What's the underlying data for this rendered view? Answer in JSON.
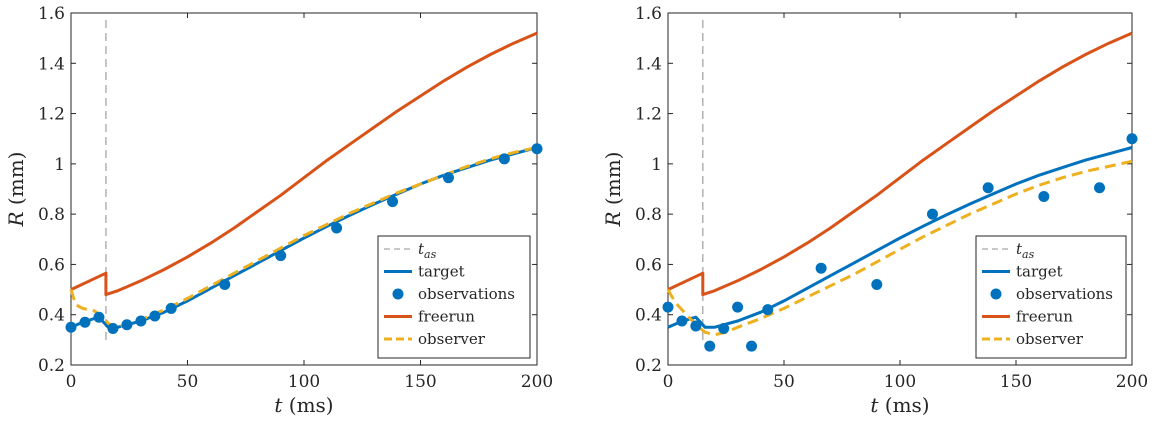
{
  "chart_data": [
    {
      "type": "line",
      "xlabel": {
        "var": "t",
        "unit": "(ms)"
      },
      "ylabel": {
        "var": "R",
        "unit": "(mm)"
      },
      "xlim": [
        0,
        200
      ],
      "ylim": [
        0.2,
        1.6
      ],
      "xticks": [
        "0",
        "50",
        "100",
        "150",
        "200"
      ],
      "yticks": [
        "0.2",
        "0.4",
        "0.6",
        "0.8",
        "1",
        "1.2",
        "1.4",
        "1.6"
      ],
      "grid": false,
      "legend_position": "bottom-right",
      "legend": [
        {
          "label": "t",
          "sub": "as"
        },
        {
          "label": "target"
        },
        {
          "label": "observations"
        },
        {
          "label": "freerun"
        },
        {
          "label": "observer"
        }
      ],
      "t_as": 15,
      "series": [
        {
          "name": "target",
          "color": "#0072BD",
          "style": "solid",
          "x": [
            0,
            5,
            10,
            12,
            14,
            16,
            20,
            30,
            40,
            50,
            60,
            70,
            80,
            90,
            100,
            110,
            120,
            130,
            140,
            150,
            160,
            170,
            180,
            190,
            200
          ],
          "y": [
            0.35,
            0.37,
            0.385,
            0.39,
            0.37,
            0.35,
            0.35,
            0.375,
            0.41,
            0.455,
            0.505,
            0.555,
            0.605,
            0.655,
            0.705,
            0.752,
            0.797,
            0.84,
            0.88,
            0.92,
            0.955,
            0.985,
            1.015,
            1.04,
            1.065
          ]
        },
        {
          "name": "observations",
          "color": "#0072BD",
          "style": "markers",
          "x": [
            0,
            6,
            12,
            18,
            24,
            30,
            36,
            43,
            66,
            90,
            114,
            138,
            162,
            186,
            200
          ],
          "y": [
            0.35,
            0.37,
            0.39,
            0.345,
            0.36,
            0.375,
            0.395,
            0.425,
            0.52,
            0.635,
            0.745,
            0.85,
            0.945,
            1.02,
            1.06
          ]
        },
        {
          "name": "freerun",
          "color": "#D95319",
          "style": "solid",
          "x": [
            0,
            15,
            15,
            20,
            30,
            40,
            50,
            60,
            70,
            80,
            90,
            100,
            110,
            120,
            130,
            140,
            150,
            160,
            170,
            180,
            190,
            200
          ],
          "y": [
            0.5,
            0.565,
            0.48,
            0.495,
            0.535,
            0.58,
            0.63,
            0.685,
            0.745,
            0.81,
            0.875,
            0.945,
            1.015,
            1.08,
            1.145,
            1.21,
            1.27,
            1.33,
            1.385,
            1.435,
            1.48,
            1.52
          ]
        },
        {
          "name": "observer",
          "color": "#EDB120",
          "style": "dashed",
          "x": [
            0,
            2,
            5,
            10,
            14,
            16,
            20,
            30,
            40,
            50,
            60,
            70,
            80,
            90,
            100,
            110,
            120,
            130,
            140,
            150,
            160,
            170,
            180,
            190,
            200
          ],
          "y": [
            0.5,
            0.44,
            0.425,
            0.415,
            0.39,
            0.365,
            0.35,
            0.38,
            0.42,
            0.465,
            0.515,
            0.565,
            0.615,
            0.665,
            0.715,
            0.76,
            0.805,
            0.845,
            0.885,
            0.92,
            0.955,
            0.99,
            1.02,
            1.045,
            1.065
          ]
        }
      ]
    },
    {
      "type": "line",
      "xlabel": {
        "var": "t",
        "unit": "(ms)"
      },
      "ylabel": {
        "var": "R",
        "unit": "(mm)"
      },
      "xlim": [
        0,
        200
      ],
      "ylim": [
        0.2,
        1.6
      ],
      "xticks": [
        "0",
        "50",
        "100",
        "150",
        "200"
      ],
      "yticks": [
        "0.2",
        "0.4",
        "0.6",
        "0.8",
        "1",
        "1.2",
        "1.4",
        "1.6"
      ],
      "grid": false,
      "legend_position": "bottom-right",
      "legend": [
        {
          "label": "t",
          "sub": "as"
        },
        {
          "label": "target"
        },
        {
          "label": "observations"
        },
        {
          "label": "freerun"
        },
        {
          "label": "observer"
        }
      ],
      "t_as": 15,
      "series": [
        {
          "name": "target",
          "color": "#0072BD",
          "style": "solid",
          "x": [
            0,
            5,
            10,
            12,
            14,
            16,
            20,
            30,
            40,
            50,
            60,
            70,
            80,
            90,
            100,
            110,
            120,
            130,
            140,
            150,
            160,
            170,
            180,
            190,
            200
          ],
          "y": [
            0.35,
            0.37,
            0.385,
            0.39,
            0.37,
            0.35,
            0.35,
            0.375,
            0.41,
            0.455,
            0.505,
            0.555,
            0.605,
            0.655,
            0.705,
            0.752,
            0.797,
            0.84,
            0.88,
            0.92,
            0.955,
            0.985,
            1.015,
            1.04,
            1.065
          ]
        },
        {
          "name": "observations",
          "color": "#0072BD",
          "style": "markers",
          "x": [
            0,
            6,
            12,
            18,
            24,
            30,
            36,
            43,
            66,
            90,
            114,
            138,
            162,
            186,
            200
          ],
          "y": [
            0.43,
            0.375,
            0.355,
            0.275,
            0.345,
            0.43,
            0.275,
            0.42,
            0.585,
            0.52,
            0.8,
            0.905,
            0.87,
            0.905,
            1.1
          ]
        },
        {
          "name": "freerun",
          "color": "#D95319",
          "style": "solid",
          "x": [
            0,
            15,
            15,
            20,
            30,
            40,
            50,
            60,
            70,
            80,
            90,
            100,
            110,
            120,
            130,
            140,
            150,
            160,
            170,
            180,
            190,
            200
          ],
          "y": [
            0.5,
            0.565,
            0.48,
            0.495,
            0.535,
            0.58,
            0.63,
            0.685,
            0.745,
            0.81,
            0.875,
            0.945,
            1.015,
            1.08,
            1.145,
            1.21,
            1.27,
            1.33,
            1.385,
            1.435,
            1.48,
            1.52
          ]
        },
        {
          "name": "observer",
          "color": "#EDB120",
          "style": "dashed",
          "x": [
            0,
            3,
            6,
            10,
            14,
            16,
            20,
            25,
            30,
            40,
            50,
            60,
            70,
            80,
            90,
            100,
            110,
            120,
            130,
            140,
            150,
            160,
            170,
            180,
            190,
            200
          ],
          "y": [
            0.5,
            0.45,
            0.42,
            0.38,
            0.345,
            0.33,
            0.32,
            0.33,
            0.35,
            0.385,
            0.425,
            0.47,
            0.515,
            0.56,
            0.61,
            0.66,
            0.71,
            0.755,
            0.8,
            0.84,
            0.88,
            0.915,
            0.945,
            0.97,
            0.99,
            1.01
          ]
        }
      ]
    }
  ]
}
